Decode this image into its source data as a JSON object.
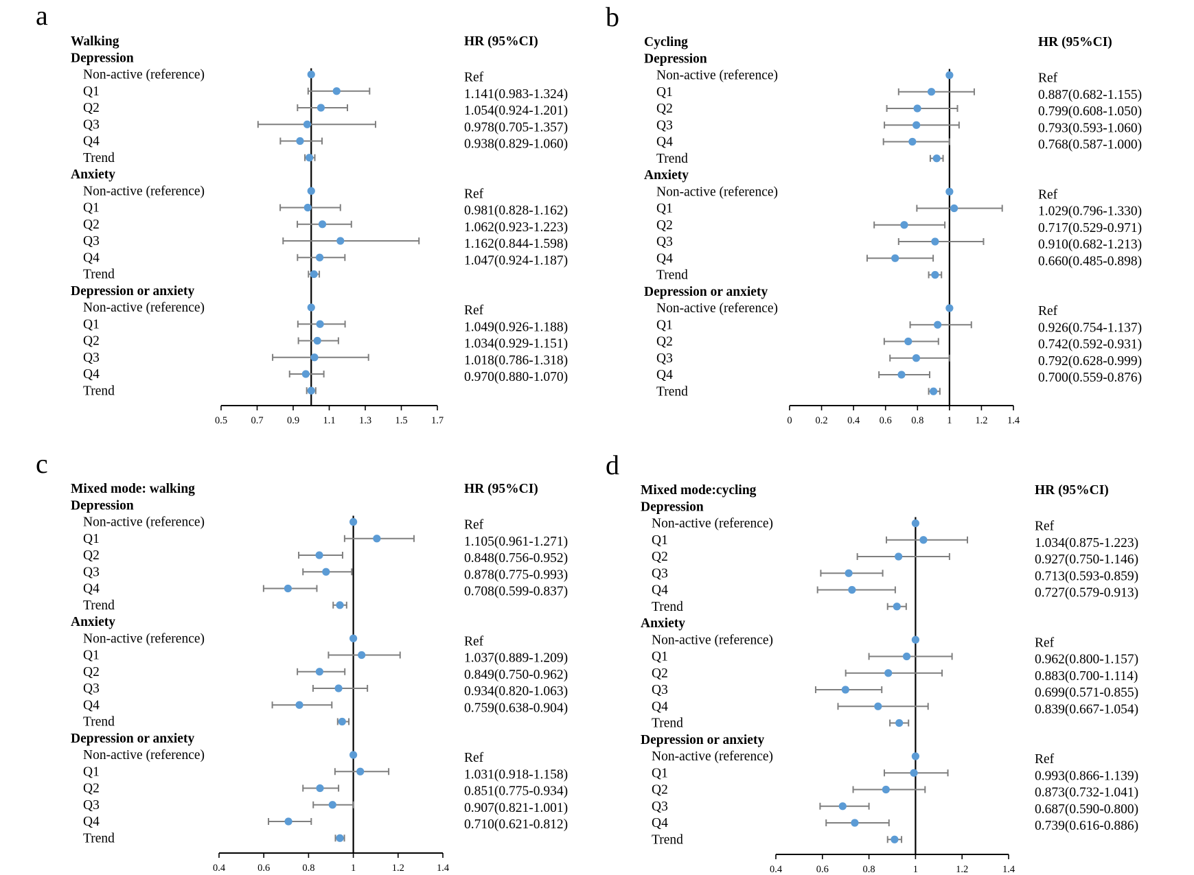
{
  "chart_data": [
    {
      "type": "forest",
      "panel": "a",
      "title": "Walking",
      "hr_header": "HR (95%CI)",
      "xlim": [
        0.5,
        1.7
      ],
      "xticks": [
        "0.5",
        "0.7",
        "0.9",
        "1.1",
        "1.3",
        "1.5",
        "1.7"
      ],
      "groups": [
        {
          "name": "Depression",
          "rows": [
            {
              "label": "Non-active (reference)",
              "hr": 1.0,
              "lo": 1.0,
              "hi": 1.0,
              "text": "Ref"
            },
            {
              "label": "Q1",
              "hr": 1.141,
              "lo": 0.983,
              "hi": 1.324,
              "text": "1.141(0.983-1.324)"
            },
            {
              "label": "Q2",
              "hr": 1.054,
              "lo": 0.924,
              "hi": 1.201,
              "text": "1.054(0.924-1.201)"
            },
            {
              "label": "Q3",
              "hr": 0.978,
              "lo": 0.705,
              "hi": 1.357,
              "text": "0.978(0.705-1.357)"
            },
            {
              "label": "Q4",
              "hr": 0.938,
              "lo": 0.829,
              "hi": 1.06,
              "text": "0.938(0.829-1.060)"
            },
            {
              "label": "Trend",
              "hr": 0.99,
              "lo": 0.965,
              "hi": 1.02
            }
          ]
        },
        {
          "name": "Anxiety",
          "rows": [
            {
              "label": "Non-active (reference)",
              "hr": 1.0,
              "lo": 1.0,
              "hi": 1.0,
              "text": "Ref"
            },
            {
              "label": "Q1",
              "hr": 0.981,
              "lo": 0.828,
              "hi": 1.162,
              "text": "0.981(0.828-1.162)"
            },
            {
              "label": "Q2",
              "hr": 1.062,
              "lo": 0.923,
              "hi": 1.223,
              "text": "1.062(0.923-1.223)"
            },
            {
              "label": "Q3",
              "hr": 1.162,
              "lo": 0.844,
              "hi": 1.598,
              "text": "1.162(0.844-1.598)"
            },
            {
              "label": "Q4",
              "hr": 1.047,
              "lo": 0.924,
              "hi": 1.187,
              "text": "1.047(0.924-1.187)"
            },
            {
              "label": "Trend",
              "hr": 1.015,
              "lo": 0.985,
              "hi": 1.045
            }
          ]
        },
        {
          "name": "Depression or anxiety",
          "rows": [
            {
              "label": "Non-active (reference)",
              "hr": 1.0,
              "lo": 1.0,
              "hi": 1.0,
              "text": "Ref"
            },
            {
              "label": "Q1",
              "hr": 1.049,
              "lo": 0.926,
              "hi": 1.188,
              "text": "1.049(0.926-1.188)"
            },
            {
              "label": "Q2",
              "hr": 1.034,
              "lo": 0.929,
              "hi": 1.151,
              "text": "1.034(0.929-1.151)"
            },
            {
              "label": "Q3",
              "hr": 1.018,
              "lo": 0.786,
              "hi": 1.318,
              "text": "1.018(0.786-1.318)"
            },
            {
              "label": "Q4",
              "hr": 0.97,
              "lo": 0.88,
              "hi": 1.07,
              "text": "0.970(0.880-1.070)"
            },
            {
              "label": "Trend",
              "hr": 1.0,
              "lo": 0.975,
              "hi": 1.025
            }
          ]
        }
      ]
    },
    {
      "type": "forest",
      "panel": "b",
      "title": "Cycling",
      "hr_header": "HR (95%CI)",
      "xlim": [
        0,
        1.4
      ],
      "xticks": [
        "0",
        "0.2",
        "0.4",
        "0.6",
        "0.8",
        "1",
        "1.2",
        "1.4"
      ],
      "groups": [
        {
          "name": "Depression",
          "rows": [
            {
              "label": "Non-active (reference)",
              "hr": 1.0,
              "lo": 1.0,
              "hi": 1.0,
              "text": "Ref"
            },
            {
              "label": "Q1",
              "hr": 0.887,
              "lo": 0.682,
              "hi": 1.155,
              "text": "0.887(0.682-1.155)"
            },
            {
              "label": "Q2",
              "hr": 0.799,
              "lo": 0.608,
              "hi": 1.05,
              "text": "0.799(0.608-1.050)"
            },
            {
              "label": "Q3",
              "hr": 0.793,
              "lo": 0.593,
              "hi": 1.06,
              "text": "0.793(0.593-1.060)"
            },
            {
              "label": "Q4",
              "hr": 0.768,
              "lo": 0.587,
              "hi": 1.0,
              "text": "0.768(0.587-1.000)"
            },
            {
              "label": "Trend",
              "hr": 0.92,
              "lo": 0.88,
              "hi": 0.96
            }
          ]
        },
        {
          "name": "Anxiety",
          "rows": [
            {
              "label": "Non-active (reference)",
              "hr": 1.0,
              "lo": 1.0,
              "hi": 1.0,
              "text": "Ref"
            },
            {
              "label": "Q1",
              "hr": 1.029,
              "lo": 0.796,
              "hi": 1.33,
              "text": "1.029(0.796-1.330)"
            },
            {
              "label": "Q2",
              "hr": 0.717,
              "lo": 0.529,
              "hi": 0.971,
              "text": "0.717(0.529-0.971)"
            },
            {
              "label": "Q3",
              "hr": 0.91,
              "lo": 0.682,
              "hi": 1.213,
              "text": "0.910(0.682-1.213)"
            },
            {
              "label": "Q4",
              "hr": 0.66,
              "lo": 0.485,
              "hi": 0.898,
              "text": "0.660(0.485-0.898)"
            },
            {
              "label": "Trend",
              "hr": 0.91,
              "lo": 0.87,
              "hi": 0.95
            }
          ]
        },
        {
          "name": "Depression or anxiety",
          "rows": [
            {
              "label": "Non-active (reference)",
              "hr": 1.0,
              "lo": 1.0,
              "hi": 1.0,
              "text": "Ref"
            },
            {
              "label": "Q1",
              "hr": 0.926,
              "lo": 0.754,
              "hi": 1.137,
              "text": "0.926(0.754-1.137)"
            },
            {
              "label": "Q2",
              "hr": 0.742,
              "lo": 0.592,
              "hi": 0.931,
              "text": "0.742(0.592-0.931)"
            },
            {
              "label": "Q3",
              "hr": 0.792,
              "lo": 0.628,
              "hi": 0.999,
              "text": "0.792(0.628-0.999)"
            },
            {
              "label": "Q4",
              "hr": 0.7,
              "lo": 0.559,
              "hi": 0.876,
              "text": "0.700(0.559-0.876)"
            },
            {
              "label": "Trend",
              "hr": 0.9,
              "lo": 0.87,
              "hi": 0.94
            }
          ]
        }
      ]
    },
    {
      "type": "forest",
      "panel": "c",
      "title": "Mixed mode: walking",
      "hr_header": "HR (95%CI)",
      "xlim": [
        0.4,
        1.4
      ],
      "xticks": [
        "0.4",
        "0.6",
        "0.8",
        "1",
        "1.2",
        "1.4"
      ],
      "groups": [
        {
          "name": "Depression",
          "rows": [
            {
              "label": "Non-active (reference)",
              "hr": 1.0,
              "lo": 1.0,
              "hi": 1.0,
              "text": "Ref"
            },
            {
              "label": "Q1",
              "hr": 1.105,
              "lo": 0.961,
              "hi": 1.271,
              "text": "1.105(0.961-1.271)"
            },
            {
              "label": "Q2",
              "hr": 0.848,
              "lo": 0.756,
              "hi": 0.952,
              "text": "0.848(0.756-0.952)"
            },
            {
              "label": "Q3",
              "hr": 0.878,
              "lo": 0.775,
              "hi": 0.993,
              "text": "0.878(0.775-0.993)"
            },
            {
              "label": "Q4",
              "hr": 0.708,
              "lo": 0.599,
              "hi": 0.837,
              "text": "0.708(0.599-0.837)"
            },
            {
              "label": "Trend",
              "hr": 0.94,
              "lo": 0.91,
              "hi": 0.97
            }
          ]
        },
        {
          "name": "Anxiety",
          "rows": [
            {
              "label": "Non-active (reference)",
              "hr": 1.0,
              "lo": 1.0,
              "hi": 1.0,
              "text": "Ref"
            },
            {
              "label": "Q1",
              "hr": 1.037,
              "lo": 0.889,
              "hi": 1.209,
              "text": "1.037(0.889-1.209)"
            },
            {
              "label": "Q2",
              "hr": 0.849,
              "lo": 0.75,
              "hi": 0.962,
              "text": "0.849(0.750-0.962)"
            },
            {
              "label": "Q3",
              "hr": 0.934,
              "lo": 0.82,
              "hi": 1.063,
              "text": "0.934(0.820-1.063)"
            },
            {
              "label": "Q4",
              "hr": 0.759,
              "lo": 0.638,
              "hi": 0.904,
              "text": "0.759(0.638-0.904)"
            },
            {
              "label": "Trend",
              "hr": 0.95,
              "lo": 0.93,
              "hi": 0.98
            }
          ]
        },
        {
          "name": "Depression or anxiety",
          "rows": [
            {
              "label": "Non-active (reference)",
              "hr": 1.0,
              "lo": 1.0,
              "hi": 1.0,
              "text": "Ref"
            },
            {
              "label": "Q1",
              "hr": 1.031,
              "lo": 0.918,
              "hi": 1.158,
              "text": "1.031(0.918-1.158)"
            },
            {
              "label": "Q2",
              "hr": 0.851,
              "lo": 0.775,
              "hi": 0.934,
              "text": "0.851(0.775-0.934)"
            },
            {
              "label": "Q3",
              "hr": 0.907,
              "lo": 0.821,
              "hi": 1.001,
              "text": "0.907(0.821-1.001)"
            },
            {
              "label": "Q4",
              "hr": 0.71,
              "lo": 0.621,
              "hi": 0.812,
              "text": "0.710(0.621-0.812)"
            },
            {
              "label": "Trend",
              "hr": 0.94,
              "lo": 0.92,
              "hi": 0.96
            }
          ]
        }
      ]
    },
    {
      "type": "forest",
      "panel": "d",
      "title": "Mixed mode:cycling",
      "hr_header": "HR (95%CI)",
      "xlim": [
        0.4,
        1.4
      ],
      "xticks": [
        "0.4",
        "0.6",
        "0.8",
        "1",
        "1.2",
        "1.4"
      ],
      "groups": [
        {
          "name": "Depression",
          "rows": [
            {
              "label": "Non-active (reference)",
              "hr": 1.0,
              "lo": 1.0,
              "hi": 1.0,
              "text": "Ref"
            },
            {
              "label": "Q1",
              "hr": 1.034,
              "lo": 0.875,
              "hi": 1.223,
              "text": "1.034(0.875-1.223)"
            },
            {
              "label": "Q2",
              "hr": 0.927,
              "lo": 0.75,
              "hi": 1.146,
              "text": "0.927(0.750-1.146)"
            },
            {
              "label": "Q3",
              "hr": 0.713,
              "lo": 0.593,
              "hi": 0.859,
              "text": "0.713(0.593-0.859)"
            },
            {
              "label": "Q4",
              "hr": 0.727,
              "lo": 0.579,
              "hi": 0.913,
              "text": "0.727(0.579-0.913)"
            },
            {
              "label": "Trend",
              "hr": 0.92,
              "lo": 0.88,
              "hi": 0.96
            }
          ]
        },
        {
          "name": "Anxiety",
          "rows": [
            {
              "label": "Non-active (reference)",
              "hr": 1.0,
              "lo": 1.0,
              "hi": 1.0,
              "text": "Ref"
            },
            {
              "label": "Q1",
              "hr": 0.962,
              "lo": 0.8,
              "hi": 1.157,
              "text": "0.962(0.800-1.157)"
            },
            {
              "label": "Q2",
              "hr": 0.883,
              "lo": 0.7,
              "hi": 1.114,
              "text": "0.883(0.700-1.114)"
            },
            {
              "label": "Q3",
              "hr": 0.699,
              "lo": 0.571,
              "hi": 0.855,
              "text": "0.699(0.571-0.855)"
            },
            {
              "label": "Q4",
              "hr": 0.839,
              "lo": 0.667,
              "hi": 1.054,
              "text": "0.839(0.667-1.054)"
            },
            {
              "label": "Trend",
              "hr": 0.93,
              "lo": 0.89,
              "hi": 0.97
            }
          ]
        },
        {
          "name": "Depression or anxiety",
          "rows": [
            {
              "label": "Non-active (reference)",
              "hr": 1.0,
              "lo": 1.0,
              "hi": 1.0,
              "text": "Ref"
            },
            {
              "label": "Q1",
              "hr": 0.993,
              "lo": 0.866,
              "hi": 1.139,
              "text": "0.993(0.866-1.139)"
            },
            {
              "label": "Q2",
              "hr": 0.873,
              "lo": 0.732,
              "hi": 1.041,
              "text": "0.873(0.732-1.041)"
            },
            {
              "label": "Q3",
              "hr": 0.687,
              "lo": 0.59,
              "hi": 0.8,
              "text": "0.687(0.590-0.800)"
            },
            {
              "label": "Q4",
              "hr": 0.739,
              "lo": 0.616,
              "hi": 0.886,
              "text": "0.739(0.616-0.886)"
            },
            {
              "label": "Trend",
              "hr": 0.91,
              "lo": 0.88,
              "hi": 0.94
            }
          ]
        }
      ]
    }
  ],
  "style": {
    "marker_color": "#5b9bd5",
    "ci_color": "#7f7f7f",
    "axis_color": "#000000"
  }
}
